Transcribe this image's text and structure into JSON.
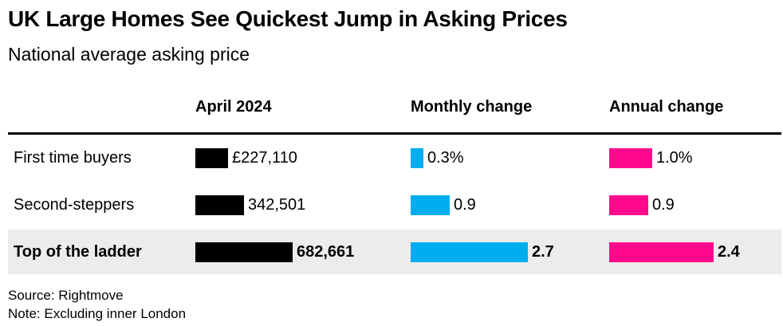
{
  "title": "UK Large Homes See Quickest Jump in Asking Prices",
  "subtitle": "National average asking price",
  "chart_data": {
    "type": "table",
    "columns": [
      "April 2024",
      "Monthly change",
      "Annual change"
    ],
    "rows": [
      {
        "label": "First time buyers",
        "price": 227110,
        "price_display": "£227,110",
        "monthly": 0.3,
        "monthly_display": "0.3%",
        "annual": 1.0,
        "annual_display": "1.0%",
        "highlight": false
      },
      {
        "label": "Second-steppers",
        "price": 342501,
        "price_display": "342,501",
        "monthly": 0.9,
        "monthly_display": "0.9",
        "annual": 0.9,
        "annual_display": "0.9",
        "highlight": false
      },
      {
        "label": "Top of the ladder",
        "price": 682661,
        "price_display": "682,661",
        "monthly": 2.7,
        "monthly_display": "2.7",
        "annual": 2.4,
        "annual_display": "2.4",
        "highlight": true
      }
    ],
    "colors": {
      "price": "#000000",
      "monthly": "#00aeef",
      "annual": "#ff0a8d",
      "highlight_row": "#ececec"
    }
  },
  "footer": {
    "source": "Source: Rightmove",
    "note": "Note: Excluding inner London"
  }
}
